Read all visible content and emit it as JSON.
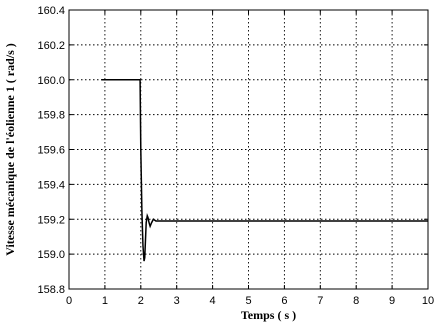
{
  "chart_data": {
    "type": "line",
    "xlabel": "Temps ( s )",
    "ylabel": "Vitesse mécanique de l'éolienne 1  ( rad/s )",
    "xlim": [
      0,
      10
    ],
    "ylim": [
      158.8,
      160.4
    ],
    "x_ticks": [
      "0",
      "1",
      "2",
      "3",
      "4",
      "5",
      "6",
      "7",
      "8",
      "9",
      "10"
    ],
    "y_ticks": [
      "158.8",
      "159.0",
      "159.2",
      "159.4",
      "159.6",
      "159.8",
      "160.0",
      "160.2",
      "160.4"
    ],
    "grid": true,
    "series": [
      {
        "color": "#000000",
        "x": [
          0.9,
          1.98,
          2.0,
          2.03,
          2.06,
          2.09,
          2.11,
          2.13,
          2.15,
          2.18,
          2.2,
          2.23,
          2.26,
          2.3,
          2.35,
          2.42,
          2.5,
          3.0,
          4.0,
          5.0,
          6.0,
          7.0,
          8.0,
          9.0,
          10.0
        ],
        "y": [
          160.0,
          160.0,
          159.6,
          159.25,
          159.05,
          158.96,
          158.98,
          159.08,
          159.18,
          159.22,
          159.21,
          159.18,
          159.16,
          159.18,
          159.2,
          159.19,
          159.19,
          159.19,
          159.19,
          159.19,
          159.19,
          159.19,
          159.19,
          159.19,
          159.19
        ]
      }
    ]
  }
}
